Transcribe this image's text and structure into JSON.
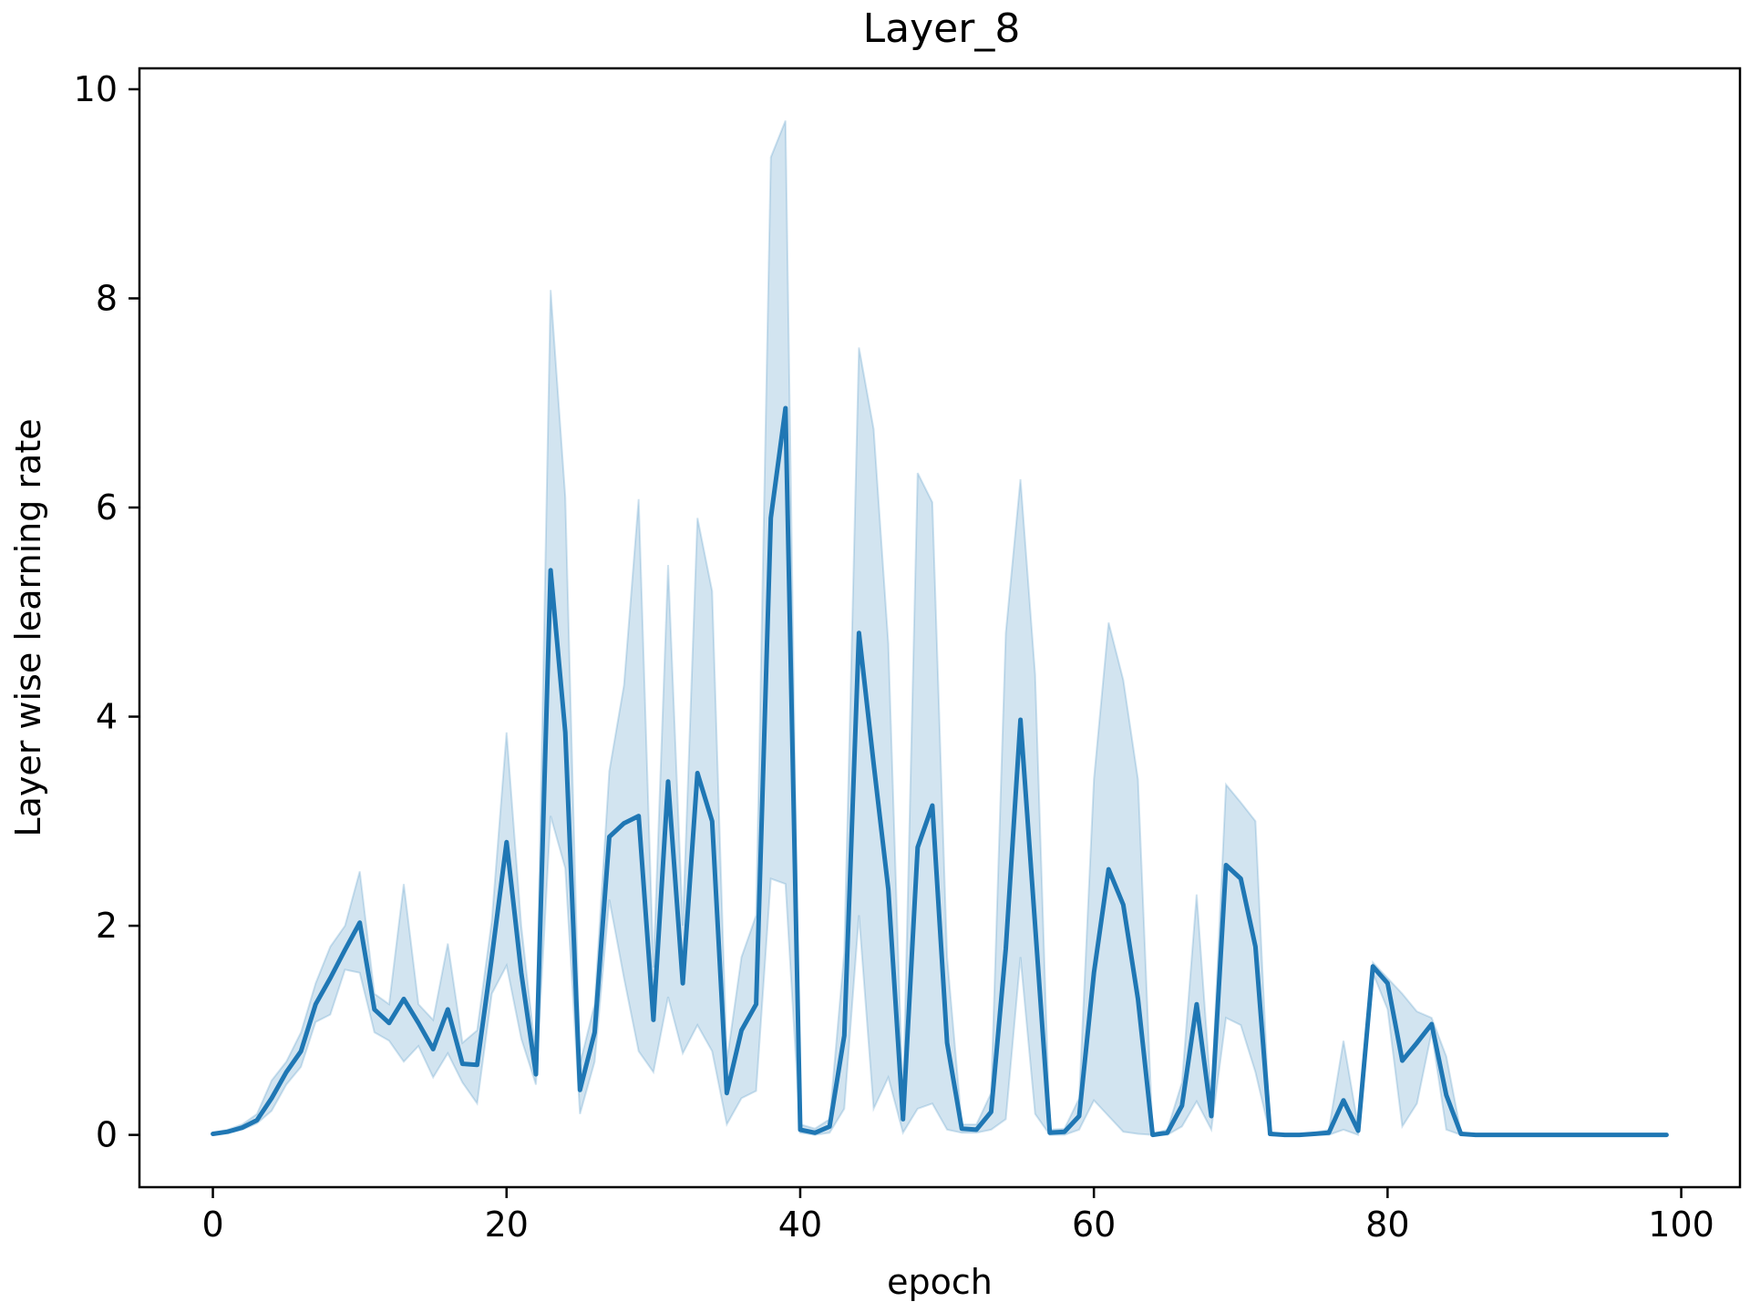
{
  "chart_data": {
    "type": "line",
    "title": "Layer_8",
    "xlabel": "epoch",
    "ylabel": "Layer wise learning rate",
    "xlim": [
      -5,
      104
    ],
    "ylim": [
      -0.5,
      10.2
    ],
    "xticks": [
      0,
      20,
      40,
      60,
      80,
      100
    ],
    "yticks": [
      0,
      2,
      4,
      6,
      8,
      10
    ],
    "grid": false,
    "legend": "none",
    "colors": {
      "line": "#1f77b4",
      "band": "#1f77b4"
    },
    "series": [
      {
        "x": [
          0,
          1,
          2,
          3,
          4,
          5,
          6,
          7,
          8,
          9,
          10,
          11,
          12,
          13,
          14,
          15,
          16,
          17,
          18,
          19,
          20,
          21,
          22,
          23,
          24,
          25,
          26,
          27,
          28,
          29,
          30,
          31,
          32,
          33,
          34,
          35,
          36,
          37,
          38,
          39,
          40,
          41,
          42,
          43,
          44,
          45,
          46,
          47,
          48,
          49,
          50,
          51,
          52,
          53,
          54,
          55,
          56,
          57,
          58,
          59,
          60,
          61,
          62,
          63,
          64,
          65,
          66,
          67,
          68,
          69,
          70,
          71,
          72,
          73,
          74,
          75,
          76,
          77,
          78,
          79,
          80,
          81,
          82,
          83,
          84,
          85,
          86,
          87,
          88,
          89,
          90,
          91,
          92,
          93,
          94,
          95,
          96,
          97,
          98,
          99
        ],
        "y": [
          0.01,
          0.03,
          0.07,
          0.14,
          0.35,
          0.6,
          0.8,
          1.25,
          1.5,
          1.77,
          2.03,
          1.2,
          1.07,
          1.3,
          1.07,
          0.82,
          1.2,
          0.68,
          0.67,
          1.7,
          2.8,
          1.55,
          0.58,
          5.4,
          3.85,
          0.43,
          0.98,
          2.85,
          2.98,
          3.05,
          1.1,
          3.38,
          1.45,
          3.46,
          3.0,
          0.4,
          1.0,
          1.25,
          5.9,
          6.95,
          0.05,
          0.02,
          0.08,
          0.95,
          4.8,
          3.55,
          2.35,
          0.15,
          2.75,
          3.15,
          0.88,
          0.06,
          0.05,
          0.22,
          1.78,
          3.97,
          2.0,
          0.02,
          0.03,
          0.18,
          1.55,
          2.54,
          2.2,
          1.3,
          0.0,
          0.02,
          0.28,
          1.25,
          0.18,
          2.58,
          2.45,
          1.8,
          0.01,
          0.0,
          0.0,
          0.01,
          0.02,
          0.33,
          0.04,
          1.61,
          1.45,
          0.71,
          0.88,
          1.06,
          0.38,
          0.01,
          0.0,
          0.0,
          0.0,
          0.0,
          0.0,
          0.0,
          0.0,
          0.0,
          0.0,
          0.0,
          0.0,
          0.0,
          0.0,
          0.0
        ],
        "ci_lower": [
          0.0,
          0.02,
          0.05,
          0.11,
          0.23,
          0.48,
          0.65,
          1.08,
          1.15,
          1.58,
          1.55,
          0.98,
          0.9,
          0.7,
          0.85,
          0.55,
          0.78,
          0.5,
          0.3,
          1.35,
          1.62,
          0.92,
          0.48,
          3.05,
          2.55,
          0.2,
          0.7,
          2.25,
          1.5,
          0.8,
          0.6,
          1.32,
          0.78,
          1.05,
          0.8,
          0.1,
          0.35,
          0.42,
          2.45,
          2.4,
          0.02,
          0.0,
          0.02,
          0.25,
          2.1,
          0.25,
          0.55,
          0.02,
          0.25,
          0.3,
          0.05,
          0.02,
          0.02,
          0.05,
          0.15,
          1.7,
          0.2,
          0.0,
          0.0,
          0.05,
          0.33,
          0.18,
          0.03,
          0.01,
          0.0,
          0.0,
          0.08,
          0.32,
          0.05,
          1.12,
          1.05,
          0.6,
          0.0,
          0.0,
          0.0,
          0.0,
          0.0,
          0.05,
          0.0,
          1.55,
          1.2,
          0.08,
          0.3,
          0.98,
          0.05,
          0.0,
          0.0,
          0.0,
          0.0,
          0.0,
          0.0,
          0.0,
          0.0,
          0.0,
          0.0,
          0.0,
          0.0,
          0.0,
          0.0,
          0.0
        ],
        "ci_upper": [
          0.02,
          0.05,
          0.1,
          0.2,
          0.52,
          0.7,
          0.98,
          1.45,
          1.8,
          2.0,
          2.52,
          1.35,
          1.25,
          2.4,
          1.25,
          1.1,
          1.83,
          0.88,
          1.0,
          2.05,
          3.85,
          2.0,
          0.75,
          8.08,
          6.1,
          0.68,
          1.25,
          3.48,
          4.3,
          6.08,
          1.6,
          5.45,
          2.0,
          5.9,
          5.2,
          0.7,
          1.7,
          2.1,
          9.35,
          9.7,
          0.1,
          0.06,
          0.15,
          1.75,
          7.53,
          6.75,
          4.7,
          0.3,
          6.33,
          6.05,
          1.7,
          0.1,
          0.1,
          0.4,
          4.8,
          6.27,
          4.4,
          0.05,
          0.06,
          0.35,
          3.4,
          4.9,
          4.35,
          3.4,
          0.01,
          0.05,
          0.5,
          2.3,
          0.35,
          3.35,
          3.18,
          3.0,
          0.02,
          0.01,
          0.01,
          0.02,
          0.05,
          0.9,
          0.08,
          1.65,
          1.5,
          1.35,
          1.18,
          1.12,
          0.75,
          0.02,
          0.01,
          0.0,
          0.0,
          0.0,
          0.0,
          0.0,
          0.0,
          0.0,
          0.0,
          0.0,
          0.0,
          0.0,
          0.0,
          0.0
        ]
      }
    ]
  }
}
